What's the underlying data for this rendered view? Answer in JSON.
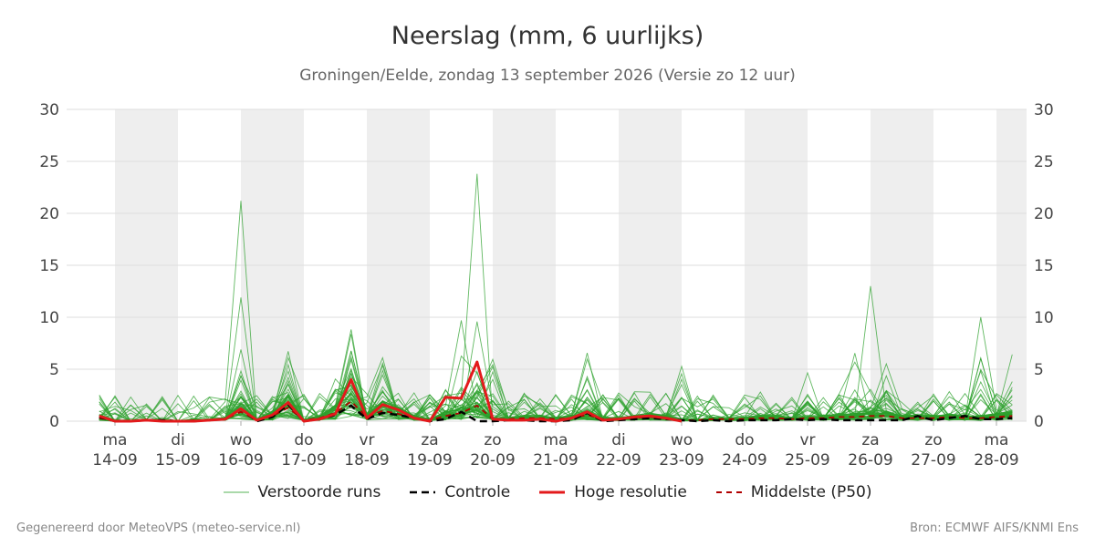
{
  "header": {
    "title": "Neerslag (mm, 6 uurlijks)",
    "subtitle": "Groningen/Eelde, zondag 13 september 2026 (Versie zo 12 uur)"
  },
  "legend": {
    "ensemble": "Verstoorde runs",
    "control": "Controle",
    "hires": "Hoge resolutie",
    "median": "Middelste (P50)"
  },
  "footer": {
    "left": "Gegenereerd door MeteoVPS (meteo-service.nl)",
    "right": "Bron: ECMWF AIFS/KNMI Ens"
  },
  "colors": {
    "ensemble": "#2ca02c",
    "control": "#000000",
    "hires": "#e31a1c",
    "median": "#b00000",
    "weekend_band": "#eeeeee",
    "grid": "#dddddd"
  },
  "chart_data": {
    "type": "line",
    "x_unit": "days from ma 14-09 00:00 (6-hourly steps)",
    "ylim": [
      0,
      30
    ],
    "yticks": [
      0,
      5,
      10,
      15,
      20,
      25,
      30
    ],
    "grid": true,
    "legend_position": "bottom",
    "x_ticks": [
      {
        "day": "ma",
        "date": "14-09"
      },
      {
        "day": "di",
        "date": "15-09"
      },
      {
        "day": "wo",
        "date": "16-09"
      },
      {
        "day": "do",
        "date": "17-09"
      },
      {
        "day": "vr",
        "date": "18-09"
      },
      {
        "day": "za",
        "date": "19-09"
      },
      {
        "day": "zo",
        "date": "20-09"
      },
      {
        "day": "ma",
        "date": "21-09"
      },
      {
        "day": "di",
        "date": "22-09"
      },
      {
        "day": "wo",
        "date": "23-09"
      },
      {
        "day": "do",
        "date": "24-09"
      },
      {
        "day": "vr",
        "date": "25-09"
      },
      {
        "day": "za",
        "date": "26-09"
      },
      {
        "day": "zo",
        "date": "27-09"
      },
      {
        "day": "ma",
        "date": "28-09"
      }
    ],
    "series": [
      {
        "name": "Controle",
        "style": "dashed-black",
        "values": [
          0.4,
          0,
          0,
          0.1,
          0.1,
          0,
          0,
          0.1,
          0.2,
          1.2,
          0,
          0.4,
          1.6,
          0,
          0.2,
          0.6,
          1.5,
          0.2,
          0.8,
          0.6,
          0.3,
          0,
          0.2,
          0.9,
          0,
          0,
          0.1,
          0.1,
          0,
          0,
          0.1,
          0.8,
          0,
          0.1,
          0.2,
          0.3,
          0.2,
          0.1,
          0,
          0.1,
          0,
          0.1,
          0.1,
          0.1,
          0.2,
          0.1,
          0.2,
          0.1,
          0.1,
          0.1,
          0.1,
          0.1,
          0.5,
          0.1,
          0.3,
          0.5,
          0.2,
          0.2,
          0.3
        ]
      },
      {
        "name": "Hoge resolutie",
        "style": "solid-red",
        "values": [
          0.5,
          0,
          0,
          0.1,
          0,
          0,
          0,
          0.1,
          0.2,
          1.2,
          0.1,
          0.6,
          1.8,
          0,
          0.2,
          0.7,
          4.0,
          0.3,
          1.6,
          1.1,
          0.3,
          0,
          2.3,
          2.2,
          5.7,
          0.2,
          0.1,
          0.1,
          0.2,
          0,
          0.3,
          0.9,
          0.1,
          0.2,
          0.4,
          0.5,
          0.3,
          0
        ]
      },
      {
        "name": "Middelste (P50)",
        "style": "dashed-darkred",
        "values": [
          0.3,
          0,
          0,
          0.1,
          0,
          0,
          0.1,
          0.1,
          0.2,
          0.9,
          0.1,
          0.5,
          1.3,
          0.1,
          0.3,
          0.8,
          1.9,
          0.4,
          1.0,
          0.7,
          0.3,
          0.1,
          0.5,
          0.8,
          1.5,
          0.2,
          0.2,
          0.3,
          0.3,
          0.2,
          0.3,
          0.6,
          0.2,
          0.2,
          0.3,
          0.4,
          0.3,
          0.1,
          0.1,
          0.2,
          0.2,
          0.2,
          0.3,
          0.3,
          0.2,
          0.3,
          0.3,
          0.4,
          0.4,
          0.5,
          0.5,
          0.3,
          0.3,
          0.3,
          0.4,
          0.3,
          0.3,
          0.4,
          0.5
        ]
      }
    ]
  }
}
